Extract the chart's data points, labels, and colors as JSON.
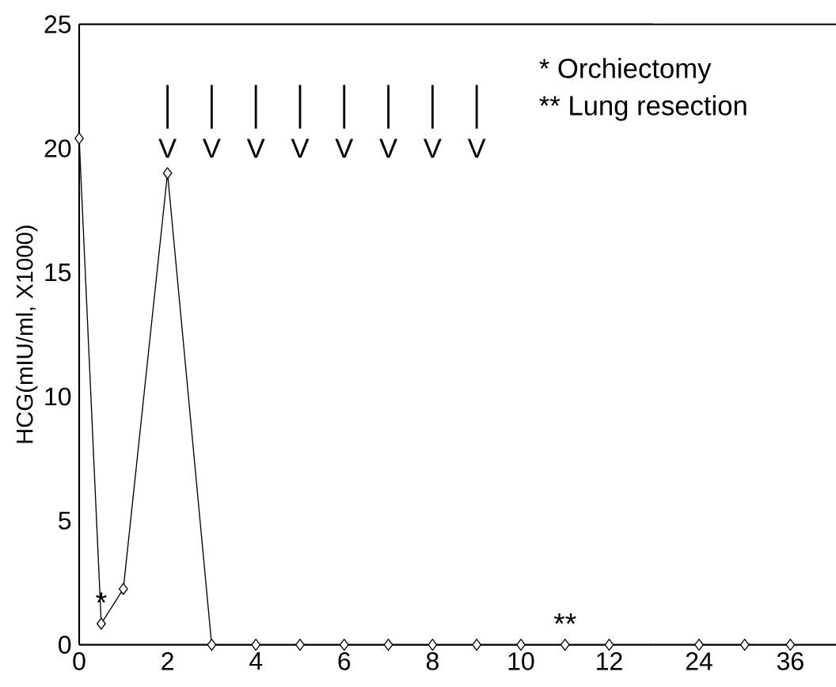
{
  "chart_data": [
    {
      "type": "line",
      "ylabel": "HCG(mIU/ml, X1000)",
      "x": [
        0,
        0.5,
        1,
        2,
        3,
        4,
        5,
        6,
        7,
        8,
        9,
        10,
        11,
        12
      ],
      "values": [
        20.4,
        0.85,
        2.25,
        19.0,
        0,
        0,
        0,
        0,
        0,
        0,
        0,
        0,
        0,
        0
      ],
      "color": "#000000",
      "marker": "diamond",
      "line_style": "solid",
      "xlim": [
        0,
        13
      ],
      "ylim": [
        0,
        25
      ],
      "xticks": [
        0,
        2,
        4,
        6,
        8,
        10,
        12
      ],
      "yticks": [
        0,
        5,
        10,
        15,
        20,
        25
      ],
      "annotations": [
        {
          "text": "*",
          "x": 0.5,
          "y": 0.85
        },
        {
          "text": "**",
          "x": 11,
          "y": 0
        },
        "|",
        "|",
        "|",
        "|",
        "|",
        "|",
        "|",
        "|",
        "V",
        "V",
        "V",
        "V",
        "V",
        "V",
        "V",
        "V",
        "*  Orchiectomy",
        "** Lung resection"
      ]
    },
    {
      "type": "line",
      "x": [
        24,
        30,
        36
      ],
      "values": [
        0,
        0,
        0
      ],
      "color": "#000000",
      "marker": "diamond",
      "line_style": "solid",
      "xlim": [
        18,
        42
      ],
      "ylim": [
        0,
        25
      ],
      "xticks": [
        24,
        36
      ],
      "tick_labels": "x"
    }
  ]
}
